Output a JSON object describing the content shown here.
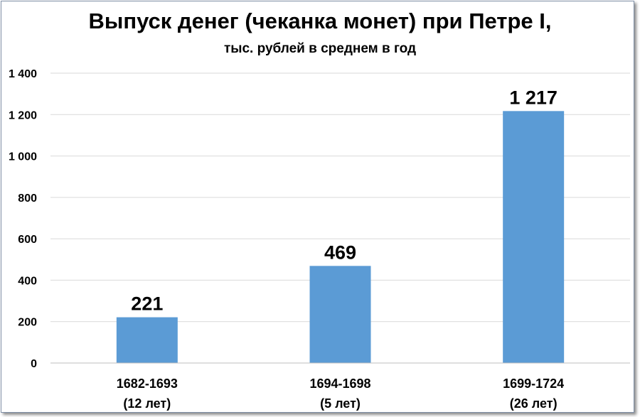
{
  "chart_data": {
    "type": "bar",
    "title": "Выпуск денег (чеканка монет) при Петре I,",
    "subtitle": "тыс. рублей в среднем в год",
    "categories": [
      {
        "period": "1682-1693",
        "duration": "(12 лет)"
      },
      {
        "period": "1694-1698",
        "duration": "(5 лет)"
      },
      {
        "period": "1699-1724",
        "duration": "(26 лет)"
      }
    ],
    "values": [
      221,
      469,
      1217
    ],
    "data_labels": [
      "221",
      "469",
      "1 217"
    ],
    "ylim": [
      0,
      1400
    ],
    "yticks": [
      0,
      200,
      400,
      600,
      800,
      1000,
      1200,
      1400
    ],
    "ytick_labels": [
      "0",
      "200",
      "400",
      "600",
      "800",
      "1 000",
      "1 200",
      "1 400"
    ],
    "grid": true,
    "legend": "none",
    "bar_color": "#5b9bd5",
    "grid_color": "#d9d9d9"
  }
}
